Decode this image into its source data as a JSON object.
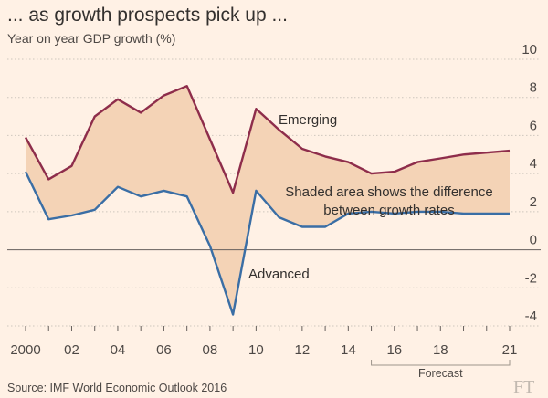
{
  "chart_data": {
    "type": "line",
    "title": "... as growth prospects pick up ...",
    "subtitle": "Year on year GDP growth (%)",
    "x": [
      2000,
      2001,
      2002,
      2003,
      2004,
      2005,
      2006,
      2007,
      2008,
      2009,
      2010,
      2011,
      2012,
      2013,
      2014,
      2015,
      2016,
      2017,
      2018,
      2019,
      2020,
      2021
    ],
    "x_tick_labels": [
      "2000",
      "02",
      "04",
      "06",
      "08",
      "10",
      "12",
      "14",
      "16",
      "18",
      "21"
    ],
    "x_tick_values": [
      2000,
      2002,
      2004,
      2006,
      2008,
      2010,
      2012,
      2014,
      2016,
      2018,
      2021
    ],
    "ylim": [
      -4,
      10
    ],
    "y_ticks": [
      -4,
      -2,
      0,
      2,
      4,
      6,
      8,
      10
    ],
    "y_tick_labels": [
      "-4",
      "-2",
      "0",
      "2",
      "4",
      "6",
      "8",
      "10"
    ],
    "grid": true,
    "series": [
      {
        "name": "Emerging",
        "color": "#8e2d4b",
        "values": [
          5.9,
          3.7,
          4.4,
          7.0,
          7.9,
          7.2,
          8.1,
          8.6,
          5.8,
          3.0,
          7.4,
          6.3,
          5.3,
          4.9,
          4.6,
          4.0,
          4.1,
          4.6,
          4.8,
          5.0,
          5.1,
          5.2
        ]
      },
      {
        "name": "Advanced",
        "color": "#3a6ea5",
        "values": [
          4.1,
          1.6,
          1.8,
          2.1,
          3.3,
          2.8,
          3.1,
          2.8,
          0.2,
          -3.4,
          3.1,
          1.7,
          1.2,
          1.2,
          1.9,
          2.0,
          1.9,
          2.0,
          2.0,
          1.9,
          1.9,
          1.9
        ]
      }
    ],
    "band": {
      "between": [
        "Emerging",
        "Advanced"
      ],
      "color": "#f4d3b6",
      "label_lines": [
        "Shaded area shows the difference",
        "between growth rates"
      ]
    },
    "forecast": {
      "from": 2015,
      "to": 2021,
      "label": "Forecast"
    },
    "annotations": {
      "emerging": "Emerging",
      "advanced": "Advanced"
    }
  },
  "source": "Source: IMF World Economic Outlook 2016",
  "logo": "FT"
}
